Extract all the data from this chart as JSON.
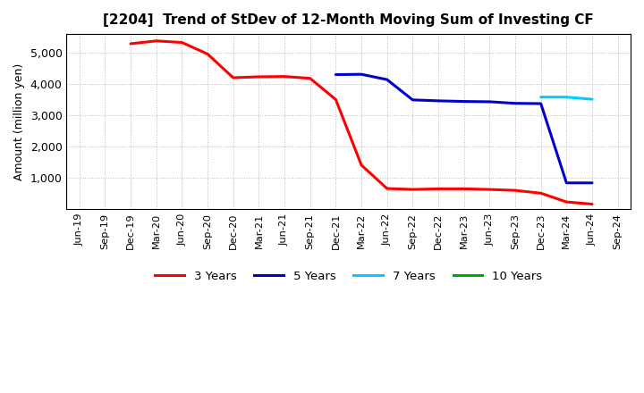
{
  "title": "[2204]  Trend of StDev of 12-Month Moving Sum of Investing CF",
  "ylabel": "Amount (million yen)",
  "background_color": "#ffffff",
  "plot_background": "#ffffff",
  "grid_color": "#888888",
  "ylim": [
    0,
    5600
  ],
  "yticks": [
    1000,
    2000,
    3000,
    4000,
    5000
  ],
  "x_labels": [
    "Jun-19",
    "Sep-19",
    "Dec-19",
    "Mar-20",
    "Jun-20",
    "Sep-20",
    "Dec-20",
    "Mar-21",
    "Jun-21",
    "Sep-21",
    "Dec-21",
    "Mar-22",
    "Jun-22",
    "Sep-22",
    "Dec-22",
    "Mar-23",
    "Jun-23",
    "Sep-23",
    "Dec-23",
    "Mar-24",
    "Jun-24",
    "Sep-24"
  ],
  "series": {
    "3 Years": {
      "color": "#ff0000",
      "x": [
        "Dec-19",
        "Mar-20",
        "Jun-20",
        "Sep-20",
        "Dec-20",
        "Mar-21",
        "Jun-21",
        "Sep-21",
        "Dec-21",
        "Mar-22",
        "Jun-22",
        "Sep-22",
        "Dec-22",
        "Mar-23",
        "Jun-23",
        "Sep-23",
        "Dec-23",
        "Mar-24",
        "Jun-24"
      ],
      "y": [
        5290,
        5380,
        5330,
        4960,
        4200,
        4230,
        4240,
        4180,
        3500,
        1400,
        650,
        620,
        640,
        640,
        620,
        590,
        500,
        220,
        150
      ]
    },
    "5 Years": {
      "color": "#0000cc",
      "x": [
        "Dec-21",
        "Mar-22",
        "Jun-22",
        "Sep-22",
        "Dec-22",
        "Mar-23",
        "Jun-23",
        "Sep-23",
        "Dec-23",
        "Mar-24",
        "Jun-24"
      ],
      "y": [
        4300,
        4310,
        4140,
        3490,
        3460,
        3440,
        3430,
        3380,
        3370,
        830,
        830
      ]
    },
    "7 Years": {
      "color": "#00ccff",
      "x": [
        "Dec-23",
        "Mar-24",
        "Jun-24"
      ],
      "y": [
        3580,
        3580,
        3510
      ]
    },
    "10 Years": {
      "color": "#00aa00",
      "x": [],
      "y": []
    }
  },
  "legend_order": [
    "3 Years",
    "5 Years",
    "7 Years",
    "10 Years"
  ],
  "linewidth": 2.2
}
